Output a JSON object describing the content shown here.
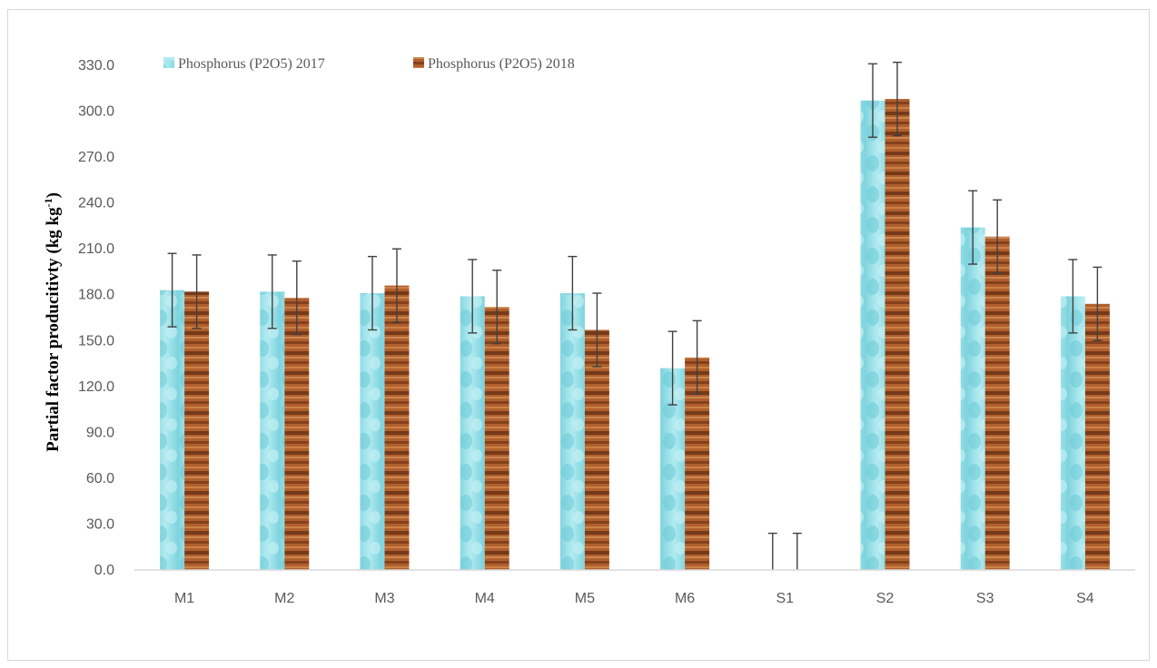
{
  "chart_data": {
    "type": "bar",
    "title": "",
    "xlabel": "",
    "ylabel": "Partial factor producitivty (kg kg-1)",
    "ylabel_parts": {
      "main": "Partial factor producitivty (kg kg",
      "sup": "-1",
      "close": ")"
    },
    "ylim": [
      0,
      330
    ],
    "yticks": [
      "0.0",
      "30.0",
      "60.0",
      "90.0",
      "120.0",
      "150.0",
      "180.0",
      "210.0",
      "240.0",
      "270.0",
      "300.0",
      "330.0"
    ],
    "categories": [
      "M1",
      "M2",
      "M3",
      "M4",
      "M5",
      "M6",
      "S1",
      "S2",
      "S3",
      "S4"
    ],
    "series": [
      {
        "name": "Phosphorus (P2O5) 2017",
        "color": "#8fdde6",
        "values": [
          183,
          182,
          181,
          179,
          181,
          132,
          0,
          307,
          224,
          179
        ],
        "errors": [
          24,
          24,
          24,
          24,
          24,
          24,
          24,
          24,
          24,
          24
        ]
      },
      {
        "name": "Phosphorus (P2O5) 2018",
        "color": "#a0522d",
        "values": [
          182,
          178,
          186,
          172,
          157,
          139,
          0,
          308,
          218,
          174
        ],
        "errors": [
          24,
          24,
          24,
          24,
          24,
          24,
          24,
          24,
          24,
          24
        ]
      }
    ],
    "legend_position": "top-left",
    "grid": false
  }
}
